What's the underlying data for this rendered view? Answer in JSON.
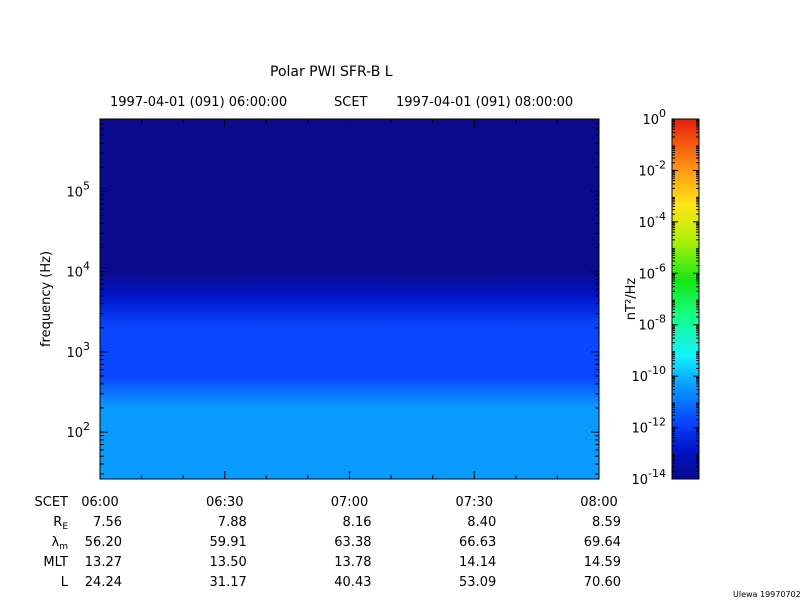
{
  "header": {
    "title": "Polar PWI SFR-B L",
    "start_time": "1997-04-01 (091) 06:00:00",
    "time_label": "SCET",
    "end_time": "1997-04-01 (091) 08:00:00"
  },
  "footer": {
    "credit": "Ulewa 19970702"
  },
  "chart_data": {
    "type": "heatmap",
    "title": "Polar PWI SFR-B L",
    "xlabel": "SCET",
    "ylabel": "frequency (Hz)",
    "y_scale": "log",
    "ylim_hz": [
      26,
      800000
    ],
    "y_ticks": [
      {
        "base": "10",
        "exp": "2",
        "value": 100
      },
      {
        "base": "10",
        "exp": "3",
        "value": 1000
      },
      {
        "base": "10",
        "exp": "4",
        "value": 10000
      },
      {
        "base": "10",
        "exp": "5",
        "value": 100000
      }
    ],
    "x_ticks": [
      "06:00",
      "06:30",
      "07:00",
      "07:30",
      "08:00"
    ],
    "x_minutes": [
      0,
      30,
      60,
      90,
      120
    ],
    "colorbar": {
      "label": "nT²/Hz",
      "scale": "log",
      "range_exp": [
        -14,
        0
      ],
      "ticks": [
        {
          "base": "10",
          "exp": "0",
          "value": 0
        },
        {
          "base": "10",
          "exp": "-2",
          "value": -2
        },
        {
          "base": "10",
          "exp": "-4",
          "value": -4
        },
        {
          "base": "10",
          "exp": "-6",
          "value": -6
        },
        {
          "base": "10",
          "exp": "-8",
          "value": -8
        },
        {
          "base": "10",
          "exp": "-10",
          "value": -10
        },
        {
          "base": "10",
          "exp": "-12",
          "value": -12
        },
        {
          "base": "10",
          "exp": "-14",
          "value": -14
        }
      ]
    },
    "spectral_profile": [
      {
        "freq": 30,
        "log10_power": -9.4
      },
      {
        "freq": 60,
        "log10_power": -9.6
      },
      {
        "freq": 100,
        "log10_power": -9.9
      },
      {
        "freq": 200,
        "log10_power": -10.3
      },
      {
        "freq": 500,
        "log10_power": -10.6
      },
      {
        "freq": 1000,
        "log10_power": -10.8
      },
      {
        "freq": 2000,
        "log10_power": -11.3
      },
      {
        "freq": 5000,
        "log10_power": -12.3
      },
      {
        "freq": 10000,
        "log10_power": -12.9
      },
      {
        "freq": 30000,
        "log10_power": -13.4
      },
      {
        "freq": 100000,
        "log10_power": -13.6
      },
      {
        "freq": 800000,
        "log10_power": -13.6
      }
    ],
    "ephemeris": [
      {
        "label": "SCET",
        "sub": "",
        "values": [
          "06:00",
          "06:30",
          "07:00",
          "07:30",
          "08:00"
        ]
      },
      {
        "label": "R",
        "sub": "E",
        "values": [
          "7.56",
          "7.88",
          "8.16",
          "8.40",
          "8.59"
        ]
      },
      {
        "label": "λ",
        "sub": "m",
        "values": [
          "56.20",
          "59.91",
          "63.38",
          "66.63",
          "69.64"
        ]
      },
      {
        "label": "MLT",
        "sub": "",
        "values": [
          "13.27",
          "13.50",
          "13.78",
          "14.14",
          "14.59"
        ]
      },
      {
        "label": "L",
        "sub": "",
        "values": [
          "24.24",
          "31.17",
          "40.43",
          "53.09",
          "70.60"
        ]
      }
    ]
  }
}
